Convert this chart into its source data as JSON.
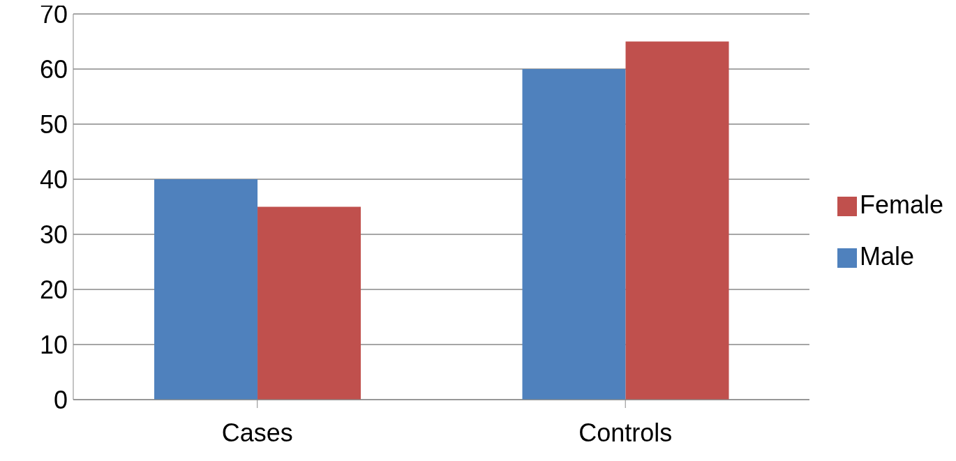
{
  "chart_data": {
    "type": "bar",
    "categories": [
      "Cases",
      "Controls"
    ],
    "series": [
      {
        "name": "Male",
        "color": "#4f81bd",
        "values": [
          40,
          60
        ]
      },
      {
        "name": "Female",
        "color": "#c0504d",
        "values": [
          35,
          65
        ]
      }
    ],
    "ylim": [
      0,
      70
    ],
    "yticks": [
      0,
      10,
      20,
      30,
      40,
      50,
      60,
      70
    ],
    "grid": "y",
    "legend": "right"
  }
}
